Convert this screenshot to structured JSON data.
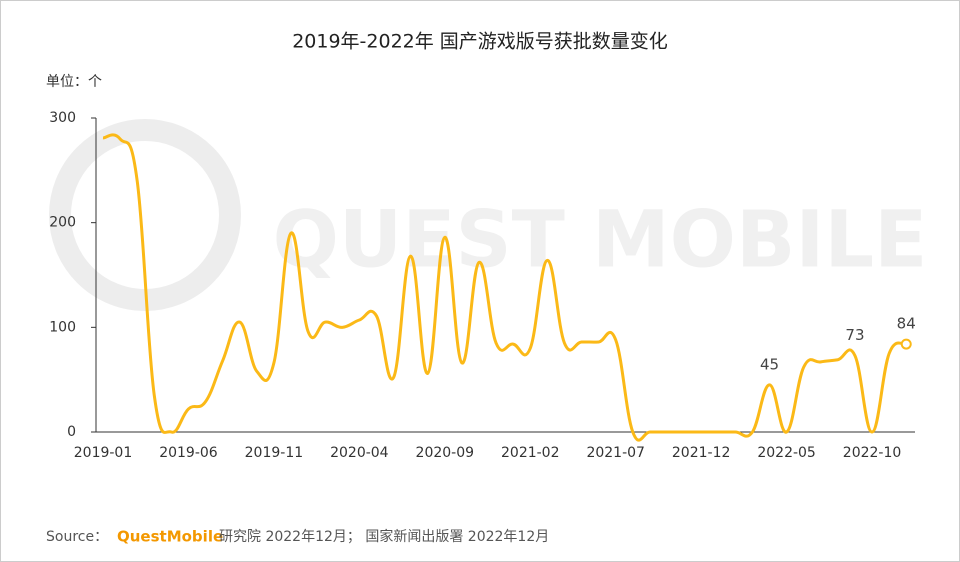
{
  "chart_data": {
    "type": "line",
    "title": "2019年-2022年 国产游戏版号获批数量变化",
    "unit_label": "单位：个",
    "watermark": "QUEST MOBILE",
    "source_prefix": "Source：",
    "source_brand": "QuestMobile",
    "source_text": "研究院 2022年12月； 国家新闻出版署 2022年12月",
    "categories": [
      "2019-01",
      null,
      null,
      null,
      null,
      "2019-06",
      null,
      null,
      null,
      null,
      "2019-11",
      null,
      null,
      null,
      null,
      "2020-04",
      null,
      null,
      null,
      null,
      "2020-09",
      null,
      null,
      null,
      null,
      "2021-02",
      null,
      null,
      null,
      null,
      "2021-07",
      null,
      null,
      null,
      null,
      "2021-12",
      null,
      null,
      null,
      null,
      "2022-05",
      null,
      null,
      null,
      null,
      "2022-10",
      null,
      null
    ],
    "series": [
      {
        "color": "#fbb917",
        "values": [
          281,
          280,
          240,
          35,
          0,
          22,
          29,
          68,
          105,
          58,
          66,
          190,
          96,
          105,
          100,
          107,
          111,
          52,
          168,
          56,
          186,
          66,
          162,
          85,
          84,
          80,
          164,
          85,
          86,
          86,
          88,
          0,
          0,
          0,
          0,
          0,
          0,
          0,
          0,
          45,
          0,
          62,
          67,
          69,
          73,
          0,
          75,
          84
        ],
        "value_labels": [
          null,
          null,
          null,
          null,
          null,
          null,
          null,
          null,
          null,
          null,
          null,
          null,
          null,
          null,
          null,
          null,
          null,
          null,
          null,
          null,
          null,
          null,
          null,
          null,
          null,
          null,
          null,
          null,
          null,
          null,
          null,
          null,
          null,
          null,
          null,
          null,
          null,
          null,
          null,
          "45",
          null,
          null,
          null,
          null,
          "73",
          null,
          null,
          "84"
        ]
      }
    ],
    "ylim": [
      0,
      300
    ],
    "yticks": [
      0,
      100,
      200,
      300
    ],
    "grid": false
  }
}
